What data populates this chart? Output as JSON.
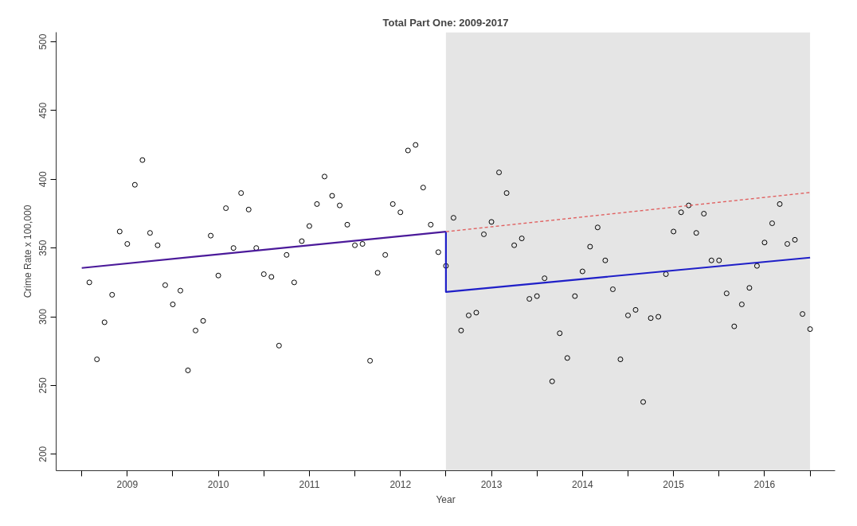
{
  "chart_data": {
    "type": "scatter",
    "title": "Total Part One: 2009-2017",
    "xlabel": "Year",
    "ylabel": "Crime Rate x 100,000",
    "x": [
      "2009-02",
      "2009-03",
      "2009-04",
      "2009-05",
      "2009-06",
      "2009-07",
      "2009-08",
      "2009-09",
      "2009-10",
      "2009-11",
      "2009-12",
      "2010-01",
      "2010-02",
      "2010-03",
      "2010-04",
      "2010-05",
      "2010-06",
      "2010-07",
      "2010-08",
      "2010-09",
      "2010-10",
      "2010-11",
      "2010-12",
      "2011-01",
      "2011-02",
      "2011-03",
      "2011-04",
      "2011-05",
      "2011-06",
      "2011-07",
      "2011-08",
      "2011-09",
      "2011-10",
      "2011-11",
      "2011-12",
      "2012-01",
      "2012-02",
      "2012-03",
      "2012-04",
      "2012-05",
      "2012-06",
      "2012-07",
      "2012-08",
      "2012-09",
      "2012-10",
      "2012-11",
      "2012-12",
      "2013-01",
      "2013-02",
      "2013-03",
      "2013-04",
      "2013-05",
      "2013-06",
      "2013-07",
      "2013-08",
      "2013-09",
      "2013-10",
      "2013-11",
      "2013-12",
      "2014-01",
      "2014-02",
      "2014-03",
      "2014-04",
      "2014-05",
      "2014-06",
      "2014-07",
      "2014-08",
      "2014-09",
      "2014-10",
      "2014-11",
      "2014-12",
      "2015-01",
      "2015-02",
      "2015-03",
      "2015-04",
      "2015-05",
      "2015-06",
      "2015-07",
      "2015-08",
      "2015-09",
      "2015-10",
      "2015-11",
      "2015-12",
      "2016-01",
      "2016-02",
      "2016-03",
      "2016-04",
      "2016-05",
      "2016-06",
      "2016-07",
      "2016-08",
      "2016-09",
      "2016-10",
      "2016-11",
      "2016-12",
      "2017-01"
    ],
    "series": [
      {
        "color": "#000000",
        "marker": "circle",
        "values": [
          325,
          269,
          296,
          316,
          362,
          353,
          396,
          414,
          361,
          352,
          323,
          309,
          319,
          261,
          290,
          297,
          359,
          330,
          379,
          350,
          390,
          378,
          350,
          331,
          329,
          279,
          345,
          325,
          355,
          366,
          382,
          402,
          388,
          381,
          367,
          352,
          353,
          268,
          332,
          345,
          382,
          376,
          421,
          425,
          394,
          367,
          347,
          337,
          372,
          290,
          301,
          303,
          360,
          369,
          405,
          390,
          352,
          357,
          313,
          315,
          328,
          253,
          288,
          270,
          315,
          333,
          351,
          365,
          341,
          320,
          269,
          301,
          305,
          238,
          299,
          300,
          331,
          362,
          376,
          381,
          361,
          375,
          341,
          341,
          317,
          293,
          309,
          321,
          337,
          354,
          368,
          382,
          353,
          356,
          302,
          291
        ]
      },
      {
        "type": "line",
        "color": "#4b1a9a",
        "line_style": "solid",
        "x": [
          "2009-01",
          "2013-01"
        ],
        "values": [
          335.5,
          361.9
        ]
      },
      {
        "type": "line",
        "color": "#1f1fc8",
        "line_style": "solid",
        "x": [
          "2013-01",
          "2013-01",
          "2017-01"
        ],
        "values": [
          361.9,
          318.1,
          343
        ]
      },
      {
        "type": "line",
        "color": "#e06060",
        "line_style": "dashed",
        "x": [
          "2013-01",
          "2017-01"
        ],
        "values": [
          361.9,
          390.4
        ]
      }
    ],
    "bands": [
      {
        "axis": "x",
        "from": "2013-01",
        "to": "2017-01",
        "color": "#e5e5e5"
      }
    ],
    "xlim": [
      "2008-09-20",
      "2017-04-10"
    ],
    "xticks": [
      {
        "value": "2009-01",
        "label": null
      },
      {
        "value": "2009-07",
        "label": "2009"
      },
      {
        "value": "2010-01",
        "label": null
      },
      {
        "value": "2010-07",
        "label": "2010"
      },
      {
        "value": "2011-01",
        "label": null
      },
      {
        "value": "2011-07",
        "label": "2011"
      },
      {
        "value": "2012-01",
        "label": null
      },
      {
        "value": "2012-07",
        "label": "2012"
      },
      {
        "value": "2013-01",
        "label": null
      },
      {
        "value": "2013-07",
        "label": "2013"
      },
      {
        "value": "2014-01",
        "label": null
      },
      {
        "value": "2014-07",
        "label": "2014"
      },
      {
        "value": "2015-01",
        "label": null
      },
      {
        "value": "2015-07",
        "label": "2015"
      },
      {
        "value": "2016-01",
        "label": null
      },
      {
        "value": "2016-07",
        "label": "2016"
      },
      {
        "value": "2017-01",
        "label": null
      }
    ],
    "ylim": [
      188,
      507
    ],
    "yticks": [
      200,
      250,
      300,
      350,
      400,
      450,
      500
    ],
    "grid": false
  }
}
